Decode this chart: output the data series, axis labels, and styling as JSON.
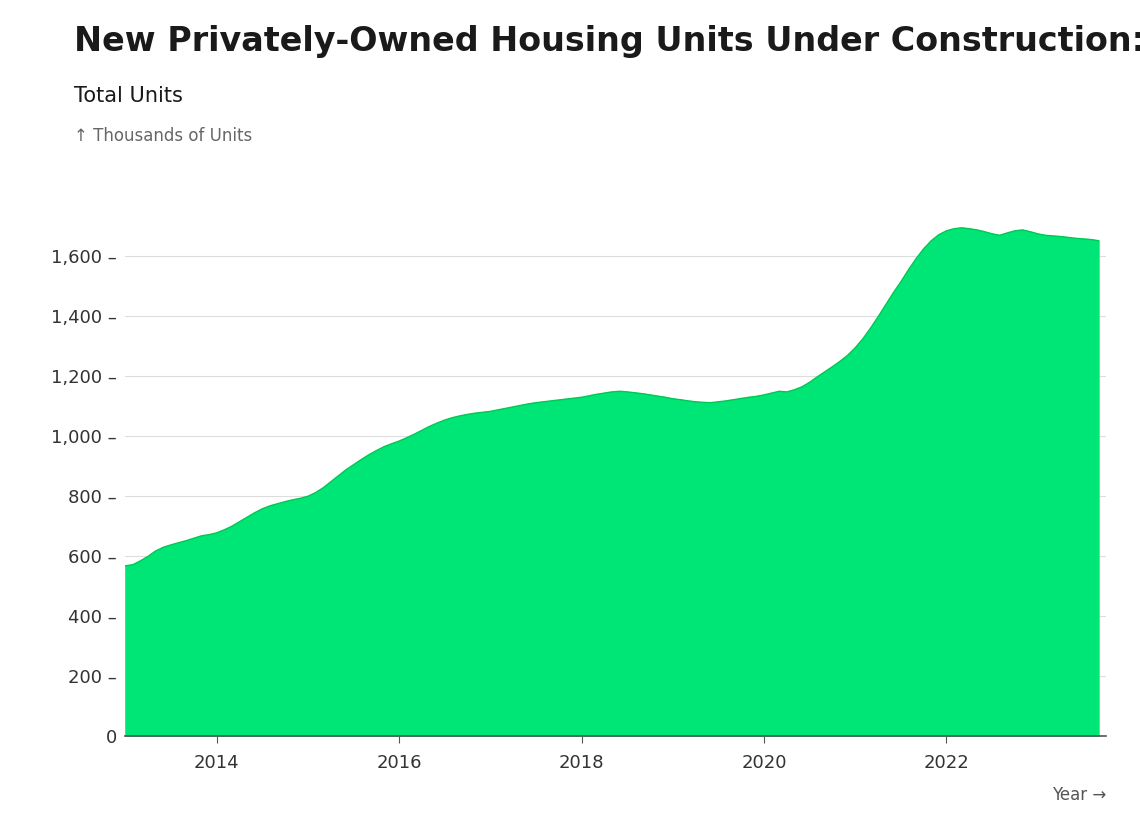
{
  "title": "New Privately-Owned Housing Units Under Construction:",
  "subtitle": "Total Units",
  "ylabel": "↑ Thousands of Units",
  "xlabel": "Year →",
  "fill_color": "#00E676",
  "line_color": "#00C853",
  "bg_color": "#ffffff",
  "title_fontsize": 24,
  "subtitle_fontsize": 15,
  "ylabel_fontsize": 12,
  "xlabel_fontsize": 12,
  "ytick_labels": [
    "0",
    "200",
    "400",
    "600",
    "800",
    "1,000",
    "1,200",
    "1,400",
    "1,600"
  ],
  "ytick_values": [
    0,
    200,
    400,
    600,
    800,
    1000,
    1200,
    1400,
    1600
  ],
  "xtick_labels": [
    "2014",
    "2016",
    "2018",
    "2020",
    "2022"
  ],
  "ylim": [
    0,
    1800
  ],
  "data": {
    "2013-01": 568,
    "2013-02": 572,
    "2013-03": 585,
    "2013-04": 600,
    "2013-05": 618,
    "2013-06": 630,
    "2013-07": 638,
    "2013-08": 645,
    "2013-09": 652,
    "2013-10": 660,
    "2013-11": 668,
    "2013-12": 672,
    "2014-01": 678,
    "2014-02": 688,
    "2014-03": 700,
    "2014-04": 715,
    "2014-05": 730,
    "2014-06": 745,
    "2014-07": 758,
    "2014-08": 768,
    "2014-09": 775,
    "2014-10": 782,
    "2014-11": 788,
    "2014-12": 793,
    "2015-01": 800,
    "2015-02": 812,
    "2015-03": 828,
    "2015-04": 848,
    "2015-05": 868,
    "2015-06": 888,
    "2015-07": 905,
    "2015-08": 922,
    "2015-09": 938,
    "2015-10": 952,
    "2015-11": 965,
    "2015-12": 975,
    "2016-01": 984,
    "2016-02": 995,
    "2016-03": 1007,
    "2016-04": 1020,
    "2016-05": 1033,
    "2016-06": 1044,
    "2016-07": 1054,
    "2016-08": 1062,
    "2016-09": 1068,
    "2016-10": 1073,
    "2016-11": 1077,
    "2016-12": 1080,
    "2017-01": 1083,
    "2017-02": 1088,
    "2017-03": 1093,
    "2017-04": 1098,
    "2017-05": 1103,
    "2017-06": 1108,
    "2017-07": 1112,
    "2017-08": 1115,
    "2017-09": 1118,
    "2017-10": 1121,
    "2017-11": 1124,
    "2017-12": 1127,
    "2018-01": 1130,
    "2018-02": 1135,
    "2018-03": 1140,
    "2018-04": 1144,
    "2018-05": 1148,
    "2018-06": 1150,
    "2018-07": 1148,
    "2018-08": 1145,
    "2018-09": 1142,
    "2018-10": 1138,
    "2018-11": 1134,
    "2018-12": 1130,
    "2019-01": 1125,
    "2019-02": 1122,
    "2019-03": 1118,
    "2019-04": 1115,
    "2019-05": 1113,
    "2019-06": 1112,
    "2019-07": 1115,
    "2019-08": 1118,
    "2019-09": 1122,
    "2019-10": 1126,
    "2019-11": 1130,
    "2019-12": 1133,
    "2020-01": 1138,
    "2020-02": 1144,
    "2020-03": 1150,
    "2020-04": 1148,
    "2020-05": 1155,
    "2020-06": 1165,
    "2020-07": 1180,
    "2020-08": 1198,
    "2020-09": 1215,
    "2020-10": 1232,
    "2020-11": 1250,
    "2020-12": 1270,
    "2021-01": 1295,
    "2021-02": 1325,
    "2021-03": 1360,
    "2021-04": 1398,
    "2021-05": 1438,
    "2021-06": 1478,
    "2021-07": 1515,
    "2021-08": 1555,
    "2021-09": 1592,
    "2021-10": 1625,
    "2021-11": 1652,
    "2021-12": 1672,
    "2022-01": 1685,
    "2022-02": 1692,
    "2022-03": 1695,
    "2022-04": 1692,
    "2022-05": 1688,
    "2022-06": 1682,
    "2022-07": 1675,
    "2022-08": 1670,
    "2022-09": 1678,
    "2022-10": 1685,
    "2022-11": 1688,
    "2022-12": 1682,
    "2023-01": 1675,
    "2023-02": 1670,
    "2023-03": 1668,
    "2023-04": 1666,
    "2023-05": 1663,
    "2023-06": 1660,
    "2023-07": 1658,
    "2023-08": 1656,
    "2023-09": 1652
  }
}
